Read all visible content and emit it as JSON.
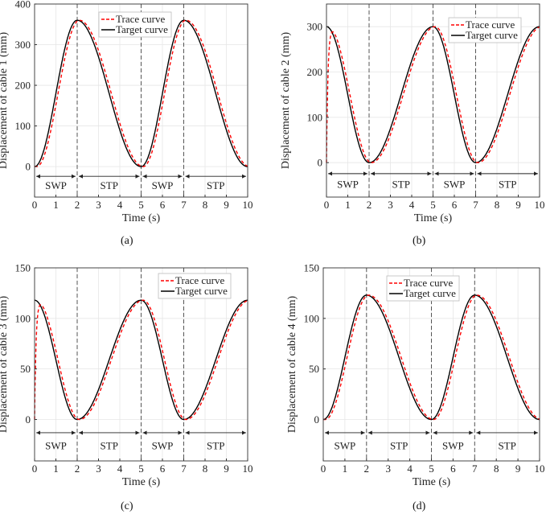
{
  "chart_data": [
    {
      "type": "line",
      "caption": "(a)",
      "xlabel": "Time (s)",
      "ylabel": "Displacement of cable 1 (mm)",
      "xlim": [
        0,
        10
      ],
      "ylim": [
        -75,
        400
      ],
      "xticks": [
        0,
        1,
        2,
        3,
        4,
        5,
        6,
        7,
        8,
        9,
        10
      ],
      "yticks": [
        0,
        100,
        200,
        300,
        400
      ],
      "grid": true,
      "legend_position": "top-center",
      "phase_boundaries": [
        2,
        5,
        7
      ],
      "phases": [
        {
          "label": "SWP",
          "from": 0,
          "to": 2
        },
        {
          "label": "STP",
          "from": 2,
          "to": 5
        },
        {
          "label": "SWP",
          "from": 5,
          "to": 7
        },
        {
          "label": "STP",
          "from": 7,
          "to": 10
        }
      ],
      "series": [
        {
          "name": "Trace curve",
          "style": "dashed",
          "color": "#ff0000",
          "lag_s": 0.1,
          "initial_jump": false
        },
        {
          "name": "Target curve",
          "style": "solid",
          "color": "#000000",
          "keyframes_t": [
            0,
            2,
            5,
            7,
            10
          ],
          "keyframes_y": [
            0,
            360,
            0,
            360,
            0
          ]
        }
      ]
    },
    {
      "type": "line",
      "caption": "(b)",
      "xlabel": "Time (s)",
      "ylabel": "Displacement of cable 2 (mm)",
      "xlim": [
        0,
        10
      ],
      "ylim": [
        -76,
        350
      ],
      "xticks": [
        0,
        1,
        2,
        3,
        4,
        5,
        6,
        7,
        8,
        9,
        10
      ],
      "yticks": [
        0,
        100,
        200,
        300
      ],
      "grid": true,
      "legend_position": "top-right",
      "phase_boundaries": [
        2,
        5,
        7
      ],
      "phases": [
        {
          "label": "SWP",
          "from": 0,
          "to": 2
        },
        {
          "label": "STP",
          "from": 2,
          "to": 5
        },
        {
          "label": "SWP",
          "from": 5,
          "to": 7
        },
        {
          "label": "STP",
          "from": 7,
          "to": 10
        }
      ],
      "series": [
        {
          "name": "Trace curve",
          "style": "dashed",
          "color": "#ff0000",
          "lag_s": 0.1,
          "initial_jump": true
        },
        {
          "name": "Target curve",
          "style": "solid",
          "color": "#000000",
          "keyframes_t": [
            0,
            2,
            5,
            7,
            10
          ],
          "keyframes_y": [
            300,
            0,
            300,
            0,
            300
          ]
        }
      ]
    },
    {
      "type": "line",
      "caption": "(c)",
      "xlabel": "Time (s)",
      "ylabel": "Displacement of cable 3 (mm)",
      "xlim": [
        0,
        10
      ],
      "ylim": [
        -41,
        150
      ],
      "xticks": [
        0,
        1,
        2,
        3,
        4,
        5,
        6,
        7,
        8,
        9,
        10
      ],
      "yticks": [
        0,
        50,
        100,
        150
      ],
      "grid": true,
      "legend_position": "top-right",
      "phase_boundaries": [
        2,
        5,
        7
      ],
      "phases": [
        {
          "label": "SWP",
          "from": 0,
          "to": 2
        },
        {
          "label": "STP",
          "from": 2,
          "to": 5
        },
        {
          "label": "SWP",
          "from": 5,
          "to": 7
        },
        {
          "label": "STP",
          "from": 7,
          "to": 10
        }
      ],
      "series": [
        {
          "name": "Trace curve",
          "style": "dashed",
          "color": "#ff0000",
          "lag_s": 0.1,
          "initial_jump": true
        },
        {
          "name": "Target curve",
          "style": "solid",
          "color": "#000000",
          "keyframes_t": [
            0,
            2,
            5,
            7,
            10
          ],
          "keyframes_y": [
            118,
            0,
            118,
            0,
            118
          ]
        }
      ]
    },
    {
      "type": "line",
      "caption": "(d)",
      "xlabel": "Time (s)",
      "ylabel": "Displacement of cable 4 (mm)",
      "xlim": [
        0,
        10
      ],
      "ylim": [
        -41,
        150
      ],
      "xticks": [
        0,
        1,
        2,
        3,
        4,
        5,
        6,
        7,
        8,
        9,
        10
      ],
      "yticks": [
        0,
        50,
        100,
        150
      ],
      "grid": true,
      "legend_position": "top-center",
      "phase_boundaries": [
        2,
        5,
        7
      ],
      "phases": [
        {
          "label": "SWP",
          "from": 0,
          "to": 2
        },
        {
          "label": "STP",
          "from": 2,
          "to": 5
        },
        {
          "label": "SWP",
          "from": 5,
          "to": 7
        },
        {
          "label": "STP",
          "from": 7,
          "to": 10
        }
      ],
      "series": [
        {
          "name": "Trace curve",
          "style": "dashed",
          "color": "#ff0000",
          "lag_s": 0.1,
          "initial_jump": false
        },
        {
          "name": "Target curve",
          "style": "solid",
          "color": "#000000",
          "keyframes_t": [
            0,
            2,
            5,
            7,
            10
          ],
          "keyframes_y": [
            0,
            123,
            0,
            123,
            0
          ]
        }
      ]
    }
  ]
}
